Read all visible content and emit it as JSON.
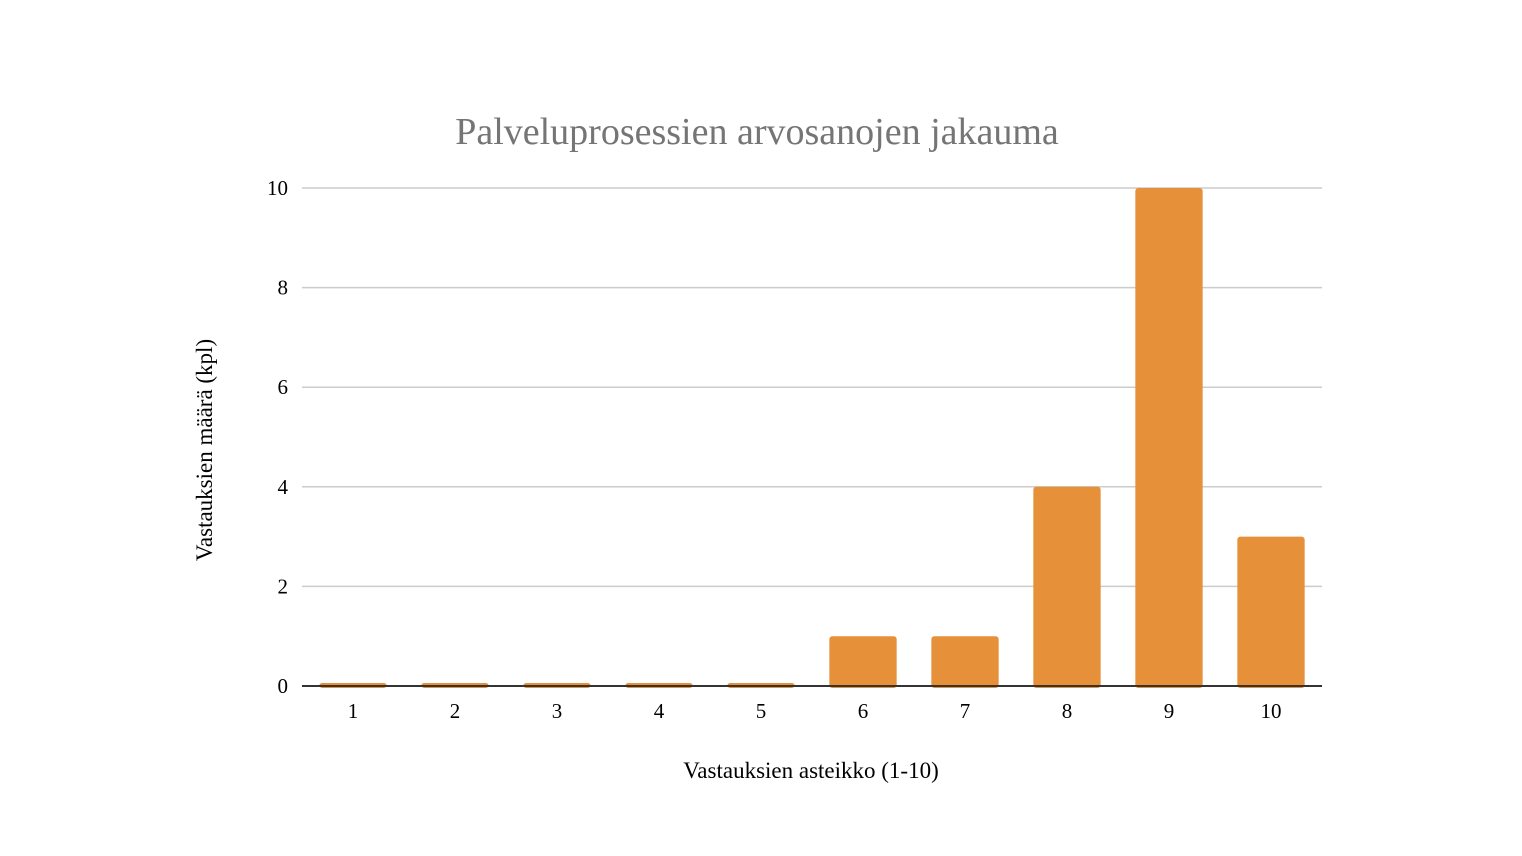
{
  "chart_data": {
    "type": "bar",
    "title": "Palveluprosessien arvosanojen jakauma",
    "xlabel": "Vastauksien asteikko (1-10)",
    "ylabel": "Vastauksien määrä (kpl)",
    "categories": [
      "1",
      "2",
      "3",
      "4",
      "5",
      "6",
      "7",
      "8",
      "9",
      "10"
    ],
    "values": [
      0,
      0,
      0,
      0,
      0,
      1,
      1,
      4,
      10,
      3
    ],
    "ylim": [
      0,
      10
    ],
    "yticks": [
      0,
      2,
      4,
      6,
      8,
      10
    ],
    "grid": true,
    "legend": "none",
    "colors": {
      "bar": "#e6913a",
      "title": "#757575",
      "gridline": "#cccccc",
      "baseline": "#333333"
    }
  }
}
